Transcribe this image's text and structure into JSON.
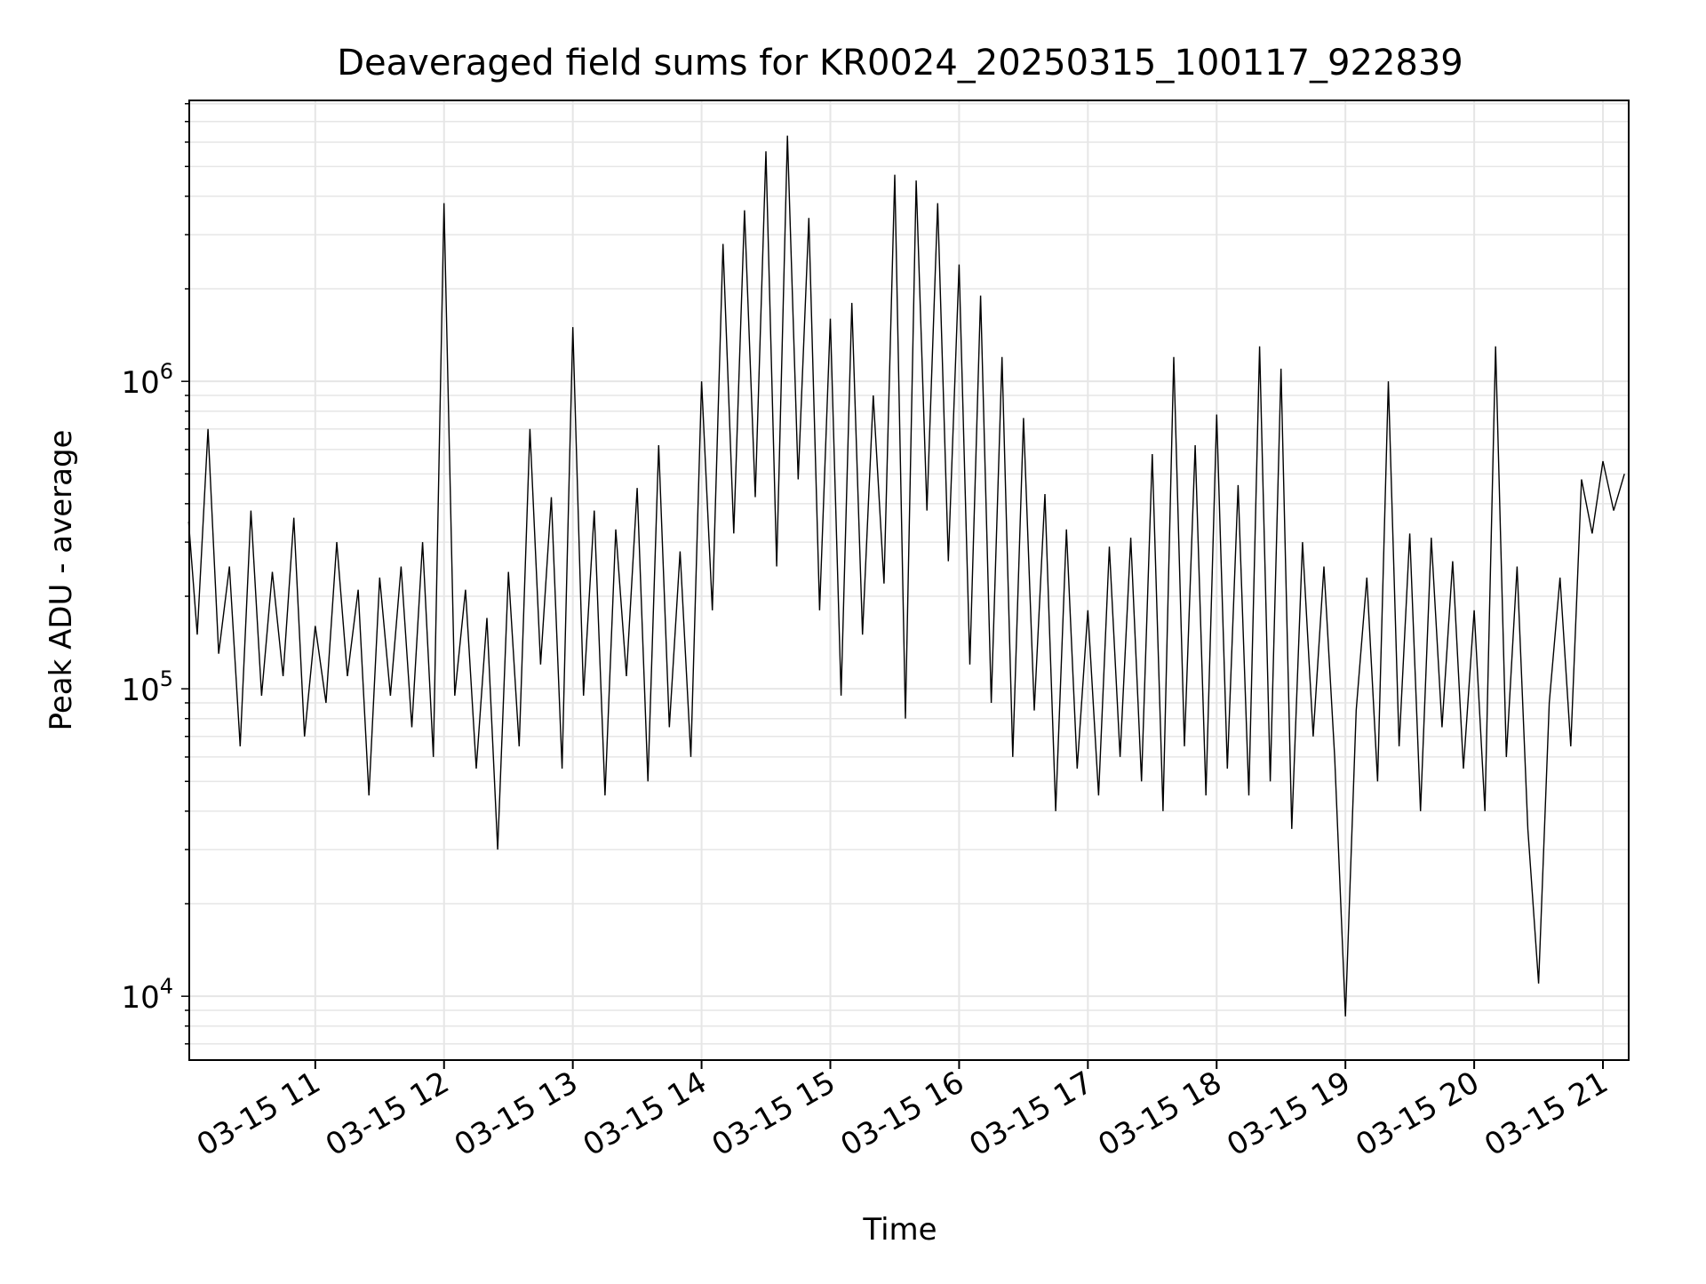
{
  "chart_data": {
    "type": "line",
    "title": "Deaveraged field sums for KR0024_20250315_100117_922839",
    "xlabel": "Time",
    "ylabel": "Peak ADU - average",
    "yscale": "log",
    "xlim": [
      "2025-03-15 10:01:17",
      "2025-03-15 21:12:00"
    ],
    "ylim": [
      6200,
      8200000
    ],
    "xticks": [
      {
        "t": "2025-03-15 11:00",
        "label": "03-15 11"
      },
      {
        "t": "2025-03-15 12:00",
        "label": "03-15 12"
      },
      {
        "t": "2025-03-15 13:00",
        "label": "03-15 13"
      },
      {
        "t": "2025-03-15 14:00",
        "label": "03-15 14"
      },
      {
        "t": "2025-03-15 15:00",
        "label": "03-15 15"
      },
      {
        "t": "2025-03-15 16:00",
        "label": "03-15 16"
      },
      {
        "t": "2025-03-15 17:00",
        "label": "03-15 17"
      },
      {
        "t": "2025-03-15 18:00",
        "label": "03-15 18"
      },
      {
        "t": "2025-03-15 19:00",
        "label": "03-15 19"
      },
      {
        "t": "2025-03-15 20:00",
        "label": "03-15 20"
      },
      {
        "t": "2025-03-15 21:00",
        "label": "03-15 21"
      }
    ],
    "yticks": [
      {
        "value": 10000,
        "base": "10",
        "exp": "4"
      },
      {
        "value": 100000,
        "base": "10",
        "exp": "5"
      },
      {
        "value": 1000000,
        "base": "10",
        "exp": "6"
      }
    ],
    "grid": true,
    "grid_color": "#e6e6e6",
    "line_color": "#000000",
    "legend": "none",
    "series": [
      {
        "x": [
          "2025-03-15 10:01",
          "2025-03-15 10:05",
          "2025-03-15 10:10",
          "2025-03-15 10:15",
          "2025-03-15 10:20",
          "2025-03-15 10:25",
          "2025-03-15 10:30",
          "2025-03-15 10:35",
          "2025-03-15 10:40",
          "2025-03-15 10:45",
          "2025-03-15 10:50",
          "2025-03-15 10:55",
          "2025-03-15 11:00",
          "2025-03-15 11:05",
          "2025-03-15 11:10",
          "2025-03-15 11:15",
          "2025-03-15 11:20",
          "2025-03-15 11:25",
          "2025-03-15 11:30",
          "2025-03-15 11:35",
          "2025-03-15 11:40",
          "2025-03-15 11:45",
          "2025-03-15 11:50",
          "2025-03-15 11:55",
          "2025-03-15 12:00",
          "2025-03-15 12:05",
          "2025-03-15 12:10",
          "2025-03-15 12:15",
          "2025-03-15 12:20",
          "2025-03-15 12:25",
          "2025-03-15 12:30",
          "2025-03-15 12:35",
          "2025-03-15 12:40",
          "2025-03-15 12:45",
          "2025-03-15 12:50",
          "2025-03-15 12:55",
          "2025-03-15 13:00",
          "2025-03-15 13:05",
          "2025-03-15 13:10",
          "2025-03-15 13:15",
          "2025-03-15 13:20",
          "2025-03-15 13:25",
          "2025-03-15 13:30",
          "2025-03-15 13:35",
          "2025-03-15 13:40",
          "2025-03-15 13:45",
          "2025-03-15 13:50",
          "2025-03-15 13:55",
          "2025-03-15 14:00",
          "2025-03-15 14:05",
          "2025-03-15 14:10",
          "2025-03-15 14:15",
          "2025-03-15 14:20",
          "2025-03-15 14:25",
          "2025-03-15 14:30",
          "2025-03-15 14:35",
          "2025-03-15 14:40",
          "2025-03-15 14:45",
          "2025-03-15 14:50",
          "2025-03-15 14:55",
          "2025-03-15 15:00",
          "2025-03-15 15:05",
          "2025-03-15 15:10",
          "2025-03-15 15:15",
          "2025-03-15 15:20",
          "2025-03-15 15:25",
          "2025-03-15 15:30",
          "2025-03-15 15:35",
          "2025-03-15 15:40",
          "2025-03-15 15:45",
          "2025-03-15 15:50",
          "2025-03-15 15:55",
          "2025-03-15 16:00",
          "2025-03-15 16:05",
          "2025-03-15 16:10",
          "2025-03-15 16:15",
          "2025-03-15 16:20",
          "2025-03-15 16:25",
          "2025-03-15 16:30",
          "2025-03-15 16:35",
          "2025-03-15 16:40",
          "2025-03-15 16:45",
          "2025-03-15 16:50",
          "2025-03-15 16:55",
          "2025-03-15 17:00",
          "2025-03-15 17:05",
          "2025-03-15 17:10",
          "2025-03-15 17:15",
          "2025-03-15 17:20",
          "2025-03-15 17:25",
          "2025-03-15 17:30",
          "2025-03-15 17:35",
          "2025-03-15 17:40",
          "2025-03-15 17:45",
          "2025-03-15 17:50",
          "2025-03-15 17:55",
          "2025-03-15 18:00",
          "2025-03-15 18:05",
          "2025-03-15 18:10",
          "2025-03-15 18:15",
          "2025-03-15 18:20",
          "2025-03-15 18:25",
          "2025-03-15 18:30",
          "2025-03-15 18:35",
          "2025-03-15 18:40",
          "2025-03-15 18:45",
          "2025-03-15 18:50",
          "2025-03-15 18:55",
          "2025-03-15 19:00",
          "2025-03-15 19:05",
          "2025-03-15 19:10",
          "2025-03-15 19:15",
          "2025-03-15 19:20",
          "2025-03-15 19:25",
          "2025-03-15 19:30",
          "2025-03-15 19:35",
          "2025-03-15 19:40",
          "2025-03-15 19:45",
          "2025-03-15 19:50",
          "2025-03-15 19:55",
          "2025-03-15 20:00",
          "2025-03-15 20:05",
          "2025-03-15 20:10",
          "2025-03-15 20:15",
          "2025-03-15 20:20",
          "2025-03-15 20:25",
          "2025-03-15 20:30",
          "2025-03-15 20:35",
          "2025-03-15 20:40",
          "2025-03-15 20:45",
          "2025-03-15 20:50",
          "2025-03-15 20:55",
          "2025-03-15 21:00",
          "2025-03-15 21:05",
          "2025-03-15 21:10"
        ],
        "y": [
          350000,
          150000,
          700000,
          130000,
          250000,
          65000,
          380000,
          95000,
          240000,
          110000,
          360000,
          70000,
          160000,
          90000,
          300000,
          110000,
          210000,
          45000,
          230000,
          95000,
          250000,
          75000,
          300000,
          60000,
          3800000,
          95000,
          210000,
          55000,
          170000,
          30000,
          240000,
          65000,
          700000,
          120000,
          420000,
          55000,
          1500000,
          95000,
          380000,
          45000,
          330000,
          110000,
          450000,
          50000,
          620000,
          75000,
          280000,
          60000,
          1000000,
          180000,
          2800000,
          320000,
          3600000,
          420000,
          5600000,
          250000,
          6300000,
          480000,
          3400000,
          180000,
          1600000,
          95000,
          1800000,
          150000,
          900000,
          220000,
          4700000,
          80000,
          4500000,
          380000,
          3800000,
          260000,
          2400000,
          120000,
          1900000,
          90000,
          1200000,
          60000,
          760000,
          85000,
          430000,
          40000,
          330000,
          55000,
          180000,
          45000,
          290000,
          60000,
          310000,
          50000,
          580000,
          40000,
          1200000,
          65000,
          620000,
          45000,
          780000,
          55000,
          460000,
          45000,
          1300000,
          50000,
          1100000,
          35000,
          300000,
          70000,
          250000,
          60000,
          8600,
          85000,
          230000,
          50000,
          1000000,
          65000,
          320000,
          40000,
          310000,
          75000,
          260000,
          55000,
          180000,
          40000,
          1300000,
          60000,
          250000,
          35000,
          11000,
          90000,
          230000,
          65000,
          480000,
          320000,
          550000,
          380000,
          500000
        ]
      }
    ]
  }
}
